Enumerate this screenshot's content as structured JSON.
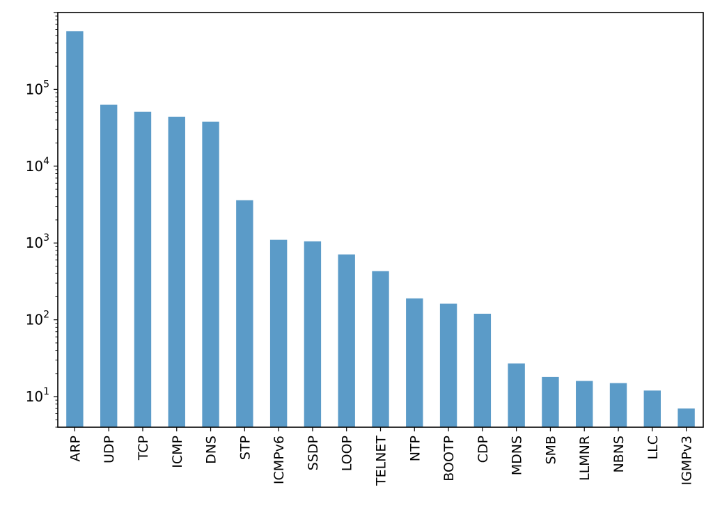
{
  "chart_data": {
    "type": "bar",
    "title": "",
    "xlabel": "",
    "ylabel": "",
    "yscale": "log",
    "ylim": [
      4,
      1000000
    ],
    "grid": false,
    "legend": "none",
    "bar_color": "#5b9bc8",
    "categories": [
      "ARP",
      "UDP",
      "TCP",
      "ICMP",
      "DNS",
      "STP",
      "ICMPv6",
      "SSDP",
      "LOOP",
      "TELNET",
      "NTP",
      "BOOTP",
      "CDP",
      "MDNS",
      "SMB",
      "LLMNR",
      "NBNS",
      "LLC",
      "IGMPv3"
    ],
    "values": [
      570000,
      63000,
      51000,
      44000,
      38000,
      3600,
      1100,
      1050,
      710,
      430,
      190,
      162,
      120,
      27,
      18,
      16,
      15,
      12,
      7
    ],
    "y_ticks": [
      {
        "base": "10",
        "exp": "1",
        "value": 10
      },
      {
        "base": "10",
        "exp": "2",
        "value": 100
      },
      {
        "base": "10",
        "exp": "3",
        "value": 1000
      },
      {
        "base": "10",
        "exp": "4",
        "value": 10000
      },
      {
        "base": "10",
        "exp": "5",
        "value": 100000
      }
    ]
  }
}
